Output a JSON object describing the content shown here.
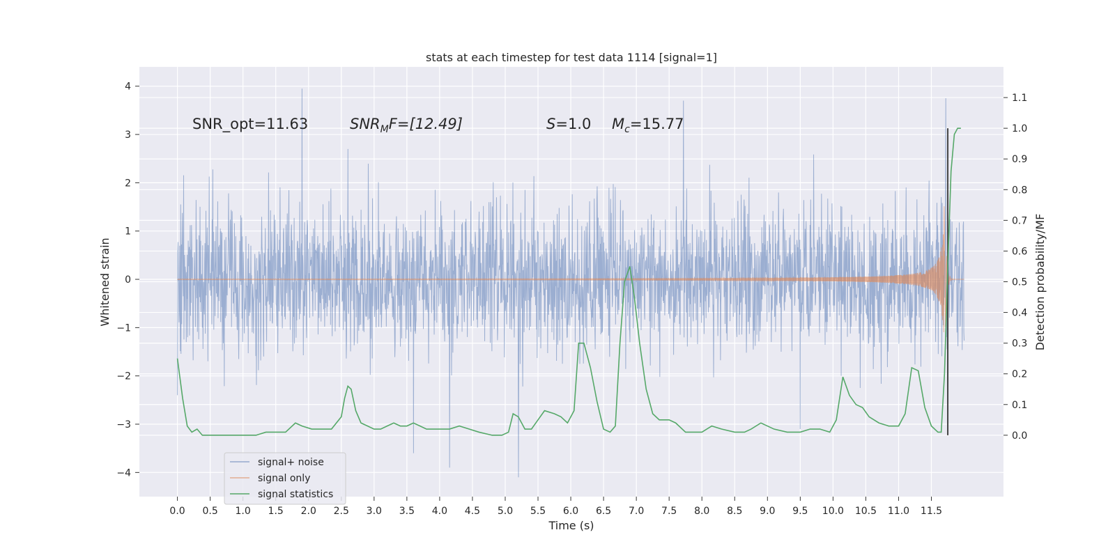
{
  "chart_data": {
    "type": "line",
    "title": "stats at each timestep for test data 1114 [signal=1]",
    "xlabel": "Time (s)",
    "ylabel": "Whitened strain",
    "ylabel_right": "Detection probability/MF",
    "xlim": [
      -0.58,
      12.6
    ],
    "ylim": [
      -4.5,
      4.4
    ],
    "ylim_right": [
      -0.2,
      1.2
    ],
    "x_ticks": [
      "0.0",
      "0.5",
      "1.0",
      "1.5",
      "2.0",
      "2.5",
      "3.0",
      "3.5",
      "4.0",
      "4.5",
      "5.0",
      "5.5",
      "6.0",
      "6.5",
      "7.0",
      "7.5",
      "8.0",
      "8.5",
      "9.0",
      "9.5",
      "10.0",
      "10.5",
      "11.0",
      "11.5"
    ],
    "y_ticks": [
      "4",
      "3",
      "2",
      "1",
      "0",
      "−1",
      "−2",
      "−3",
      "−4"
    ],
    "y_right_ticks": [
      "1.1",
      "1.0",
      "0.9",
      "0.8",
      "0.7",
      "0.6",
      "0.5",
      "0.4",
      "0.3",
      "0.2",
      "0.1",
      "0.0"
    ],
    "grid": true,
    "legend_position": "lower-left",
    "annotations": {
      "snr_opt": "SNR_opt=11.63",
      "snr_mf_sym": "SNR",
      "snr_mf_sub": "M",
      "snr_mf_rest": "F=[12.49]",
      "s_sym": "S",
      "s_rest": "=1.0",
      "mc_sym": "M",
      "mc_sub": "c",
      "mc_rest": "=15.77"
    },
    "colors": {
      "noise": "#4c72b0",
      "signal": "#dd8452",
      "stats": "#55a868",
      "background": "#eaeaf2",
      "grid": "#ffffff",
      "marker": "#444444"
    },
    "marker_line_x": 11.75,
    "series": [
      {
        "name": "signal+ noise",
        "kind": "noise",
        "t_start": 0.0,
        "t_end": 12.0,
        "envelope_pos": 2.2,
        "envelope_neg": -2.2,
        "peak_x": [
          0.0,
          1.9,
          2.6,
          3.6,
          4.15,
          5.2,
          7.72,
          9.5,
          11.72
        ],
        "peak_y": [
          -2.4,
          3.95,
          2.7,
          -3.6,
          -3.9,
          -4.1,
          3.7,
          -3.1,
          3.75
        ]
      },
      {
        "name": "signal only",
        "kind": "chirp",
        "t_start": 0.0,
        "t_end": 12.0,
        "merger_x": 11.7,
        "peak_amplitude": 1.85
      },
      {
        "name": "signal statistics",
        "kind": "stats",
        "x": [
          0.0,
          0.08,
          0.15,
          0.22,
          0.3,
          0.38,
          0.45,
          0.55,
          0.7,
          0.9,
          1.0,
          1.2,
          1.35,
          1.5,
          1.65,
          1.8,
          1.9,
          2.05,
          2.2,
          2.35,
          2.5,
          2.55,
          2.6,
          2.65,
          2.72,
          2.8,
          2.9,
          3.0,
          3.1,
          3.2,
          3.3,
          3.4,
          3.5,
          3.6,
          3.7,
          3.8,
          3.9,
          4.0,
          4.15,
          4.3,
          4.45,
          4.6,
          4.8,
          4.95,
          5.05,
          5.12,
          5.2,
          5.3,
          5.4,
          5.5,
          5.6,
          5.75,
          5.85,
          5.95,
          6.05,
          6.12,
          6.2,
          6.3,
          6.4,
          6.5,
          6.6,
          6.68,
          6.75,
          6.82,
          6.9,
          6.97,
          7.05,
          7.15,
          7.25,
          7.35,
          7.5,
          7.6,
          7.75,
          7.9,
          8.0,
          8.15,
          8.3,
          8.5,
          8.65,
          8.75,
          8.9,
          9.1,
          9.3,
          9.5,
          9.65,
          9.8,
          9.95,
          10.05,
          10.15,
          10.25,
          10.35,
          10.45,
          10.55,
          10.7,
          10.85,
          11.0,
          11.1,
          11.2,
          11.3,
          11.4,
          11.5,
          11.6,
          11.65,
          11.7,
          11.75,
          11.8,
          11.85,
          11.9,
          11.95
        ],
        "y": [
          0.25,
          0.12,
          0.03,
          0.01,
          0.02,
          0.0,
          0.0,
          0.0,
          0.0,
          0.0,
          0.0,
          0.0,
          0.01,
          0.01,
          0.01,
          0.04,
          0.03,
          0.02,
          0.02,
          0.02,
          0.06,
          0.12,
          0.16,
          0.15,
          0.08,
          0.04,
          0.03,
          0.02,
          0.02,
          0.03,
          0.04,
          0.03,
          0.03,
          0.04,
          0.03,
          0.02,
          0.02,
          0.02,
          0.02,
          0.03,
          0.02,
          0.01,
          0.0,
          0.0,
          0.01,
          0.07,
          0.06,
          0.02,
          0.02,
          0.05,
          0.08,
          0.07,
          0.06,
          0.04,
          0.08,
          0.3,
          0.3,
          0.22,
          0.11,
          0.02,
          0.01,
          0.03,
          0.3,
          0.5,
          0.55,
          0.45,
          0.3,
          0.15,
          0.07,
          0.05,
          0.05,
          0.04,
          0.01,
          0.01,
          0.01,
          0.03,
          0.02,
          0.01,
          0.01,
          0.02,
          0.04,
          0.02,
          0.01,
          0.01,
          0.02,
          0.02,
          0.01,
          0.05,
          0.19,
          0.13,
          0.1,
          0.09,
          0.06,
          0.04,
          0.03,
          0.03,
          0.07,
          0.22,
          0.21,
          0.09,
          0.03,
          0.01,
          0.01,
          0.2,
          0.55,
          0.86,
          0.98,
          1.0,
          1.0
        ]
      }
    ]
  }
}
